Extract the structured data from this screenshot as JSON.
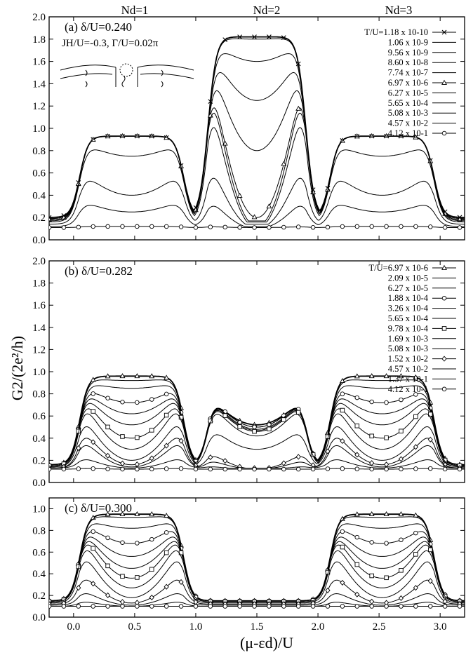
{
  "figure": {
    "ylabel": "G2/(2e²/h)",
    "xlabel": "(μ-εd)/U",
    "top_labels": [
      "Nd=1",
      "Nd=2",
      "Nd=3"
    ]
  },
  "chart_data": [
    {
      "type": "line",
      "panel_label": "(a) δ/U=0.240",
      "parameters": "JH/U=-0.3, Γ/U=0.02π",
      "legend_position": "top-right",
      "xlim": [
        -0.2,
        3.2
      ],
      "ylim": [
        0.0,
        2.0
      ],
      "x_ticks": [
        "0.0",
        "0.5",
        "1.0",
        "1.5",
        "2.0",
        "2.5",
        "3.0"
      ],
      "y_ticks": [
        "0.0",
        "0.2",
        "0.4",
        "0.6",
        "0.8",
        "1.0",
        "1.2",
        "1.4",
        "1.6",
        "1.8",
        "2.0"
      ],
      "legend_title": "T/U=",
      "series": [
        {
          "name": "1.18 x 10-10",
          "marker": "cross",
          "peaks": [
            0.93,
            1.83,
            0.93
          ],
          "valleys": [
            0.94,
            1.82,
            0.94
          ],
          "edge": 0.2
        },
        {
          "name": "1.06 x 10-9",
          "marker": "none",
          "peaks": [
            0.93,
            1.83,
            0.93
          ],
          "valleys": [
            0.93,
            1.8,
            0.93
          ],
          "edge": 0.19
        },
        {
          "name": "9.56 x 10-9",
          "marker": "none",
          "peaks": [
            0.93,
            1.83,
            0.93
          ],
          "valleys": [
            0.93,
            1.6,
            0.93
          ],
          "edge": 0.19
        },
        {
          "name": "8.60 x 10-8",
          "marker": "none",
          "peaks": [
            0.93,
            1.83,
            0.93
          ],
          "valleys": [
            0.93,
            1.25,
            0.93
          ],
          "edge": 0.18
        },
        {
          "name": "7.74 x 10-7",
          "marker": "none",
          "peaks": [
            0.93,
            1.82,
            0.93
          ],
          "valleys": [
            0.93,
            0.8,
            0.93
          ],
          "edge": 0.18
        },
        {
          "name": "6.97 x 10-6",
          "marker": "triangle",
          "peaks": [
            0.93,
            1.8,
            0.93
          ],
          "valleys": [
            0.93,
            0.2,
            0.93
          ],
          "edge": 0.18
        },
        {
          "name": "6.27 x 10-5",
          "marker": "none",
          "peaks": [
            0.93,
            1.75,
            0.93
          ],
          "valleys": [
            0.93,
            0.12,
            0.93
          ],
          "edge": 0.17
        },
        {
          "name": "5.65 x 10-4",
          "marker": "none",
          "peaks": [
            0.9,
            1.55,
            0.9
          ],
          "valleys": [
            0.75,
            0.1,
            0.75
          ],
          "edge": 0.16
        },
        {
          "name": "5.08 x 10-3",
          "marker": "none",
          "peaks": [
            0.65,
            0.82,
            0.65
          ],
          "valleys": [
            0.4,
            0.1,
            0.4
          ],
          "edge": 0.14
        },
        {
          "name": "4.57 x 10-2",
          "marker": "none",
          "peaks": [
            0.37,
            0.42,
            0.37
          ],
          "valleys": [
            0.25,
            0.1,
            0.25
          ],
          "edge": 0.12
        },
        {
          "name": "4.12 x 10-1",
          "marker": "circle",
          "peaks": [
            0.12,
            0.12,
            0.12
          ],
          "valleys": [
            0.12,
            0.11,
            0.12
          ],
          "edge": 0.11
        }
      ]
    },
    {
      "type": "line",
      "panel_label": "(b) δ/U=0.282",
      "legend_position": "top-right",
      "xlim": [
        -0.2,
        3.2
      ],
      "ylim": [
        0.0,
        2.0
      ],
      "x_ticks": [
        "0.0",
        "0.5",
        "1.0",
        "1.5",
        "2.0",
        "2.5",
        "3.0"
      ],
      "y_ticks": [
        "0.0",
        "0.2",
        "0.4",
        "0.6",
        "0.8",
        "1.0",
        "1.2",
        "1.4",
        "1.6",
        "1.8",
        "2.0"
      ],
      "legend_title": "T/U=",
      "series": [
        {
          "name": "6.97 x 10-6",
          "marker": "triangle",
          "peaks": [
            0.96,
            0.82,
            0.96
          ],
          "valleys": [
            0.97,
            0.52,
            0.97
          ],
          "edge": 0.16
        },
        {
          "name": "2.09 x 10-5",
          "marker": "none",
          "peaks": [
            0.95,
            0.83,
            0.95
          ],
          "valleys": [
            0.92,
            0.52,
            0.92
          ],
          "edge": 0.16
        },
        {
          "name": "6.27 x 10-5",
          "marker": "none",
          "peaks": [
            0.93,
            0.84,
            0.93
          ],
          "valleys": [
            0.85,
            0.5,
            0.85
          ],
          "edge": 0.16
        },
        {
          "name": "1.88 x 10-4",
          "marker": "circle",
          "peaks": [
            0.92,
            0.85,
            0.92
          ],
          "valleys": [
            0.72,
            0.5,
            0.72
          ],
          "edge": 0.15
        },
        {
          "name": "3.26 x 10-4",
          "marker": "none",
          "peaks": [
            0.91,
            0.84,
            0.91
          ],
          "valleys": [
            0.62,
            0.48,
            0.62
          ],
          "edge": 0.15
        },
        {
          "name": "5.65 x 10-4",
          "marker": "none",
          "peaks": [
            0.9,
            0.83,
            0.9
          ],
          "valleys": [
            0.52,
            0.47,
            0.52
          ],
          "edge": 0.15
        },
        {
          "name": "9.78 x 10-4",
          "marker": "square",
          "peaks": [
            0.88,
            0.82,
            0.88
          ],
          "valleys": [
            0.4,
            0.46,
            0.4
          ],
          "edge": 0.15
        },
        {
          "name": "1.69 x 10-3",
          "marker": "none",
          "peaks": [
            0.85,
            0.8,
            0.85
          ],
          "valleys": [
            0.3,
            0.42,
            0.3
          ],
          "edge": 0.14
        },
        {
          "name": "5.08 x 10-3",
          "marker": "none",
          "peaks": [
            0.7,
            0.55,
            0.7
          ],
          "valleys": [
            0.2,
            0.3,
            0.2
          ],
          "edge": 0.14
        },
        {
          "name": "1.52 x 10-2",
          "marker": "diamond",
          "peaks": [
            0.55,
            0.3,
            0.55
          ],
          "valleys": [
            0.16,
            0.12,
            0.16
          ],
          "edge": 0.13
        },
        {
          "name": "4.57 x 10-2",
          "marker": "none",
          "peaks": [
            0.45,
            0.22,
            0.45
          ],
          "valleys": [
            0.14,
            0.12,
            0.14
          ],
          "edge": 0.13
        },
        {
          "name": "1.37 x 10-1",
          "marker": "none",
          "peaks": [
            0.25,
            0.15,
            0.25
          ],
          "valleys": [
            0.13,
            0.12,
            0.13
          ],
          "edge": 0.13
        },
        {
          "name": "4.12 x 10-1",
          "marker": "circle",
          "peaks": [
            0.13,
            0.12,
            0.13
          ],
          "valleys": [
            0.12,
            0.12,
            0.12
          ],
          "edge": 0.12
        }
      ]
    },
    {
      "type": "line",
      "panel_label": "(c) δ/U=0.300",
      "xlim": [
        -0.2,
        3.2
      ],
      "ylim": [
        0.0,
        1.1
      ],
      "x_ticks": [
        "0.0",
        "0.5",
        "1.0",
        "1.5",
        "2.0",
        "2.5",
        "3.0"
      ],
      "y_ticks": [
        "0.0",
        "0.2",
        "0.4",
        "0.6",
        "0.8",
        "1.0"
      ],
      "series": [
        {
          "name": "6.97 x 10-6",
          "marker": "triangle",
          "peaks": [
            0.95,
            0.06,
            0.95
          ],
          "valleys": [
            0.97,
            0.06,
            0.97
          ],
          "edge": 0.15
        },
        {
          "name": "2.09 x 10-5",
          "marker": "none",
          "peaks": [
            0.95,
            0.06,
            0.95
          ],
          "valleys": [
            0.92,
            0.06,
            0.92
          ],
          "edge": 0.15
        },
        {
          "name": "6.27 x 10-5",
          "marker": "none",
          "peaks": [
            0.94,
            0.06,
            0.94
          ],
          "valleys": [
            0.82,
            0.06,
            0.82
          ],
          "edge": 0.15
        },
        {
          "name": "1.88 x 10-4",
          "marker": "circle",
          "peaks": [
            0.93,
            0.06,
            0.93
          ],
          "valleys": [
            0.68,
            0.06,
            0.68
          ],
          "edge": 0.15
        },
        {
          "name": "3.26 x 10-4",
          "marker": "none",
          "peaks": [
            0.92,
            0.06,
            0.92
          ],
          "valleys": [
            0.56,
            0.06,
            0.56
          ],
          "edge": 0.15
        },
        {
          "name": "5.65 x 10-4",
          "marker": "none",
          "peaks": [
            0.91,
            0.06,
            0.91
          ],
          "valleys": [
            0.45,
            0.06,
            0.45
          ],
          "edge": 0.15
        },
        {
          "name": "9.78 x 10-4",
          "marker": "square",
          "peaks": [
            0.9,
            0.06,
            0.9
          ],
          "valleys": [
            0.36,
            0.06,
            0.36
          ],
          "edge": 0.14
        },
        {
          "name": "1.69 x 10-3",
          "marker": "none",
          "peaks": [
            0.85,
            0.06,
            0.85
          ],
          "valleys": [
            0.27,
            0.07,
            0.27
          ],
          "edge": 0.14
        },
        {
          "name": "5.08 x 10-3",
          "marker": "none",
          "peaks": [
            0.72,
            0.07,
            0.72
          ],
          "valleys": [
            0.18,
            0.07,
            0.18
          ],
          "edge": 0.13
        },
        {
          "name": "1.52 x 10-2",
          "marker": "diamond",
          "peaks": [
            0.47,
            0.08,
            0.47
          ],
          "valleys": [
            0.13,
            0.08,
            0.13
          ],
          "edge": 0.12
        },
        {
          "name": "4.57 x 10-2",
          "marker": "none",
          "peaks": [
            0.28,
            0.09,
            0.28
          ],
          "valleys": [
            0.11,
            0.09,
            0.11
          ],
          "edge": 0.11
        },
        {
          "name": "1.37 x 10-1",
          "marker": "none",
          "peaks": [
            0.16,
            0.1,
            0.16
          ],
          "valleys": [
            0.1,
            0.1,
            0.1
          ],
          "edge": 0.1
        },
        {
          "name": "4.12 x 10-1",
          "marker": "circle",
          "peaks": [
            0.1,
            0.1,
            0.1
          ],
          "valleys": [
            0.1,
            0.1,
            0.1
          ],
          "edge": 0.1
        }
      ]
    }
  ]
}
